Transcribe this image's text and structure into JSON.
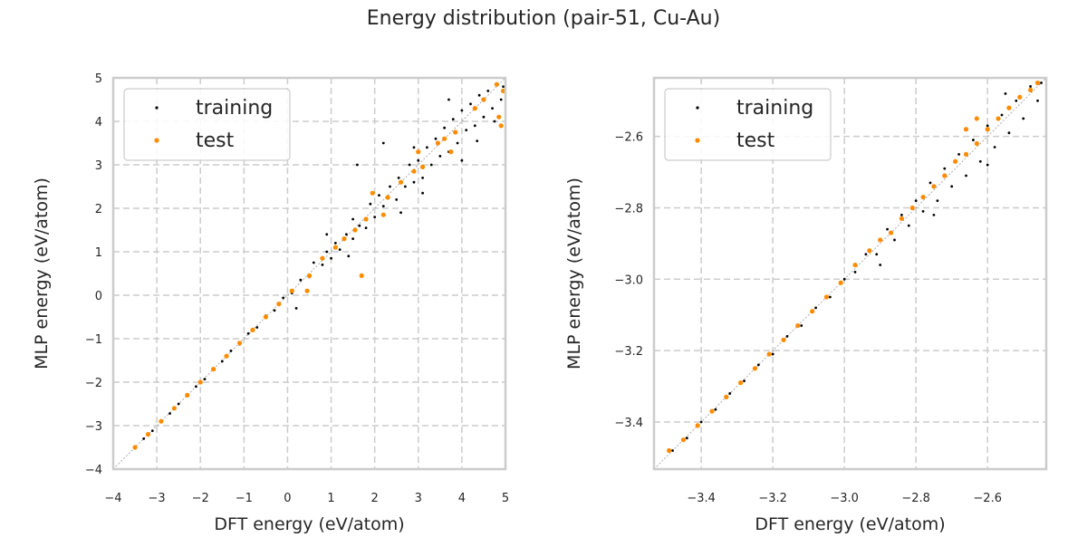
{
  "title": "Energy distribution (pair-51, Cu-Au)",
  "colors": {
    "training": "#000000",
    "test": "#ff8c00",
    "grid": "#cccccc",
    "frame": "#cccccc"
  },
  "chart_data": [
    {
      "type": "scatter",
      "xlabel": "DFT energy (eV/atom)",
      "ylabel": "MLP energy (eV/atom)",
      "xlim": [
        -4,
        5
      ],
      "ylim": [
        -4,
        5
      ],
      "xticks": [
        "−4",
        "−3",
        "−2",
        "−1",
        "0",
        "1",
        "2",
        "3",
        "4",
        "5"
      ],
      "xtick_values": [
        -4,
        -3,
        -2,
        -1,
        0,
        1,
        2,
        3,
        4,
        5
      ],
      "yticks": [
        "−4",
        "−3",
        "−2",
        "−1",
        "0",
        "1",
        "2",
        "3",
        "4",
        "5"
      ],
      "ytick_values": [
        -4,
        -3,
        -2,
        -1,
        0,
        1,
        2,
        3,
        4,
        5
      ],
      "grid": true,
      "legend": "upper-left",
      "diagonal": "y=x",
      "series": [
        {
          "name": "training",
          "points": [
            [
              -3.5,
              -3.5
            ],
            [
              -3.3,
              -3.3
            ],
            [
              -3.1,
              -3.12
            ],
            [
              -2.9,
              -2.9
            ],
            [
              -2.7,
              -2.72
            ],
            [
              -2.5,
              -2.5
            ],
            [
              -2.3,
              -2.32
            ],
            [
              -2.1,
              -2.1
            ],
            [
              -1.9,
              -1.93
            ],
            [
              -1.7,
              -1.7
            ],
            [
              -1.5,
              -1.52
            ],
            [
              -1.3,
              -1.28
            ],
            [
              -1.1,
              -1.13
            ],
            [
              -0.9,
              -0.88
            ],
            [
              -0.7,
              -0.74
            ],
            [
              -0.5,
              -0.47
            ],
            [
              -0.3,
              -0.35
            ],
            [
              -0.1,
              -0.06
            ],
            [
              0.1,
              0.05
            ],
            [
              0.3,
              0.35
            ],
            [
              0.5,
              0.42
            ],
            [
              0.6,
              0.75
            ],
            [
              0.8,
              0.7
            ],
            [
              0.9,
              1.0
            ],
            [
              1.0,
              0.85
            ],
            [
              1.1,
              1.2
            ],
            [
              1.2,
              1.05
            ],
            [
              1.35,
              1.4
            ],
            [
              1.5,
              1.3
            ],
            [
              1.5,
              1.75
            ],
            [
              1.65,
              1.6
            ],
            [
              1.8,
              1.55
            ],
            [
              1.9,
              2.1
            ],
            [
              2.0,
              1.8
            ],
            [
              2.1,
              2.3
            ],
            [
              2.2,
              2.05
            ],
            [
              2.35,
              2.5
            ],
            [
              2.5,
              2.2
            ],
            [
              2.55,
              2.7
            ],
            [
              2.7,
              2.5
            ],
            [
              2.8,
              3.0
            ],
            [
              2.9,
              2.6
            ],
            [
              3.0,
              3.1
            ],
            [
              3.1,
              2.7
            ],
            [
              3.2,
              3.4
            ],
            [
              3.3,
              3.0
            ],
            [
              3.4,
              3.6
            ],
            [
              3.5,
              3.2
            ],
            [
              3.6,
              3.85
            ],
            [
              3.7,
              3.3
            ],
            [
              3.8,
              4.05
            ],
            [
              3.9,
              3.5
            ],
            [
              4.0,
              4.25
            ],
            [
              4.1,
              3.8
            ],
            [
              4.2,
              4.4
            ],
            [
              4.3,
              3.9
            ],
            [
              4.4,
              4.6
            ],
            [
              4.5,
              4.1
            ],
            [
              4.6,
              4.7
            ],
            [
              4.7,
              4.3
            ],
            [
              4.8,
              4.85
            ],
            [
              4.9,
              4.5
            ],
            [
              4.95,
              4.8
            ],
            [
              1.6,
              3.0
            ],
            [
              2.2,
              3.5
            ],
            [
              3.7,
              4.5
            ],
            [
              4.0,
              3.1
            ],
            [
              0.2,
              -0.3
            ],
            [
              1.4,
              0.9
            ],
            [
              2.6,
              1.9
            ],
            [
              3.1,
              2.35
            ],
            [
              4.35,
              3.55
            ],
            [
              4.75,
              4.0
            ],
            [
              2.9,
              3.4
            ],
            [
              0.9,
              1.4
            ]
          ]
        },
        {
          "name": "test",
          "points": [
            [
              -3.5,
              -3.5
            ],
            [
              -3.2,
              -3.2
            ],
            [
              -2.9,
              -2.9
            ],
            [
              -2.6,
              -2.6
            ],
            [
              -2.3,
              -2.3
            ],
            [
              -2.0,
              -2.0
            ],
            [
              -1.7,
              -1.7
            ],
            [
              -1.4,
              -1.4
            ],
            [
              -1.1,
              -1.1
            ],
            [
              -0.8,
              -0.8
            ],
            [
              -0.5,
              -0.5
            ],
            [
              -0.2,
              -0.2
            ],
            [
              0.1,
              0.1
            ],
            [
              0.45,
              0.1
            ],
            [
              0.5,
              0.45
            ],
            [
              0.8,
              0.85
            ],
            [
              1.1,
              1.1
            ],
            [
              1.3,
              1.3
            ],
            [
              1.7,
              0.45
            ],
            [
              1.55,
              1.5
            ],
            [
              1.8,
              1.75
            ],
            [
              1.95,
              2.35
            ],
            [
              2.2,
              1.85
            ],
            [
              2.3,
              2.25
            ],
            [
              2.6,
              2.6
            ],
            [
              2.9,
              2.85
            ],
            [
              3.0,
              3.3
            ],
            [
              3.1,
              2.95
            ],
            [
              3.45,
              3.5
            ],
            [
              3.75,
              3.3
            ],
            [
              3.85,
              3.75
            ],
            [
              4.3,
              4.3
            ],
            [
              4.5,
              4.5
            ],
            [
              4.8,
              4.85
            ],
            [
              4.85,
              4.1
            ],
            [
              4.9,
              3.9
            ],
            [
              4.95,
              4.7
            ],
            [
              3.6,
              3.6
            ]
          ]
        }
      ]
    },
    {
      "type": "scatter",
      "xlabel": "DFT energy (eV/atom)",
      "ylabel": "MLP energy (eV/atom)",
      "xlim": [
        -3.532,
        -2.436
      ],
      "ylim": [
        -3.532,
        -2.436
      ],
      "xticks": [
        "−3.4",
        "−3.2",
        "−3.0",
        "−2.8",
        "−2.6"
      ],
      "xtick_values": [
        -3.4,
        -3.2,
        -3.0,
        -2.8,
        -2.6
      ],
      "yticks": [
        "−3.4",
        "−3.2",
        "−3.0",
        "−2.8",
        "−2.6"
      ],
      "ytick_values": [
        -3.4,
        -3.2,
        -3.0,
        -2.8,
        -2.6
      ],
      "grid": true,
      "legend": "upper-left",
      "diagonal": "y=x",
      "series": [
        {
          "name": "training",
          "points": [
            [
              -3.48,
              -3.48
            ],
            [
              -3.44,
              -3.445
            ],
            [
              -3.4,
              -3.4
            ],
            [
              -3.36,
              -3.365
            ],
            [
              -3.32,
              -3.32
            ],
            [
              -3.28,
              -3.285
            ],
            [
              -3.24,
              -3.24
            ],
            [
              -3.2,
              -3.21
            ],
            [
              -3.16,
              -3.16
            ],
            [
              -3.12,
              -3.13
            ],
            [
              -3.08,
              -3.08
            ],
            [
              -3.04,
              -3.05
            ],
            [
              -3.0,
              -3.0
            ],
            [
              -2.97,
              -2.98
            ],
            [
              -2.94,
              -2.93
            ],
            [
              -2.91,
              -2.93
            ],
            [
              -2.88,
              -2.86
            ],
            [
              -2.86,
              -2.89
            ],
            [
              -2.84,
              -2.82
            ],
            [
              -2.82,
              -2.85
            ],
            [
              -2.8,
              -2.78
            ],
            [
              -2.78,
              -2.81
            ],
            [
              -2.76,
              -2.73
            ],
            [
              -2.74,
              -2.78
            ],
            [
              -2.72,
              -2.69
            ],
            [
              -2.7,
              -2.74
            ],
            [
              -2.68,
              -2.65
            ],
            [
              -2.66,
              -2.71
            ],
            [
              -2.64,
              -2.61
            ],
            [
              -2.62,
              -2.67
            ],
            [
              -2.6,
              -2.57
            ],
            [
              -2.58,
              -2.63
            ],
            [
              -2.56,
              -2.54
            ],
            [
              -2.54,
              -2.59
            ],
            [
              -2.52,
              -2.5
            ],
            [
              -2.5,
              -2.55
            ],
            [
              -2.48,
              -2.46
            ],
            [
              -2.46,
              -2.5
            ],
            [
              -2.45,
              -2.45
            ],
            [
              -2.9,
              -2.96
            ],
            [
              -2.75,
              -2.82
            ],
            [
              -2.6,
              -2.68
            ],
            [
              -2.55,
              -2.48
            ]
          ]
        },
        {
          "name": "test",
          "points": [
            [
              -3.49,
              -3.48
            ],
            [
              -3.45,
              -3.45
            ],
            [
              -3.41,
              -3.41
            ],
            [
              -3.37,
              -3.37
            ],
            [
              -3.33,
              -3.33
            ],
            [
              -3.29,
              -3.29
            ],
            [
              -3.25,
              -3.25
            ],
            [
              -3.21,
              -3.21
            ],
            [
              -3.17,
              -3.17
            ],
            [
              -3.13,
              -3.13
            ],
            [
              -3.09,
              -3.09
            ],
            [
              -3.05,
              -3.05
            ],
            [
              -3.01,
              -3.01
            ],
            [
              -2.97,
              -2.96
            ],
            [
              -2.93,
              -2.92
            ],
            [
              -2.9,
              -2.89
            ],
            [
              -2.87,
              -2.87
            ],
            [
              -2.84,
              -2.83
            ],
            [
              -2.81,
              -2.8
            ],
            [
              -2.78,
              -2.77
            ],
            [
              -2.75,
              -2.74
            ],
            [
              -2.72,
              -2.71
            ],
            [
              -2.69,
              -2.67
            ],
            [
              -2.66,
              -2.65
            ],
            [
              -2.63,
              -2.62
            ],
            [
              -2.6,
              -2.58
            ],
            [
              -2.57,
              -2.55
            ],
            [
              -2.54,
              -2.52
            ],
            [
              -2.51,
              -2.49
            ],
            [
              -2.48,
              -2.47
            ],
            [
              -2.46,
              -2.45
            ],
            [
              -2.63,
              -2.55
            ],
            [
              -2.66,
              -2.58
            ]
          ]
        }
      ]
    }
  ]
}
